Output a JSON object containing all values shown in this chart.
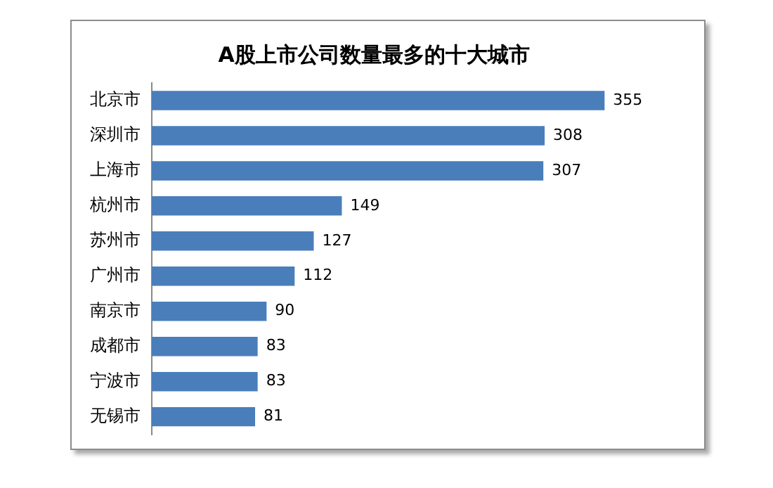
{
  "chart_data": {
    "type": "bar",
    "orientation": "horizontal",
    "title": "A股上市公司数量最多的十大城市",
    "categories": [
      "北京市",
      "深圳市",
      "上海市",
      "杭州市",
      "苏州市",
      "广州市",
      "南京市",
      "成都市",
      "宁波市",
      "无锡市"
    ],
    "values": [
      355,
      308,
      307,
      149,
      127,
      112,
      90,
      83,
      83,
      81
    ],
    "color": "#4a7ebb",
    "data_labels": true,
    "grid": false,
    "legend": false
  }
}
